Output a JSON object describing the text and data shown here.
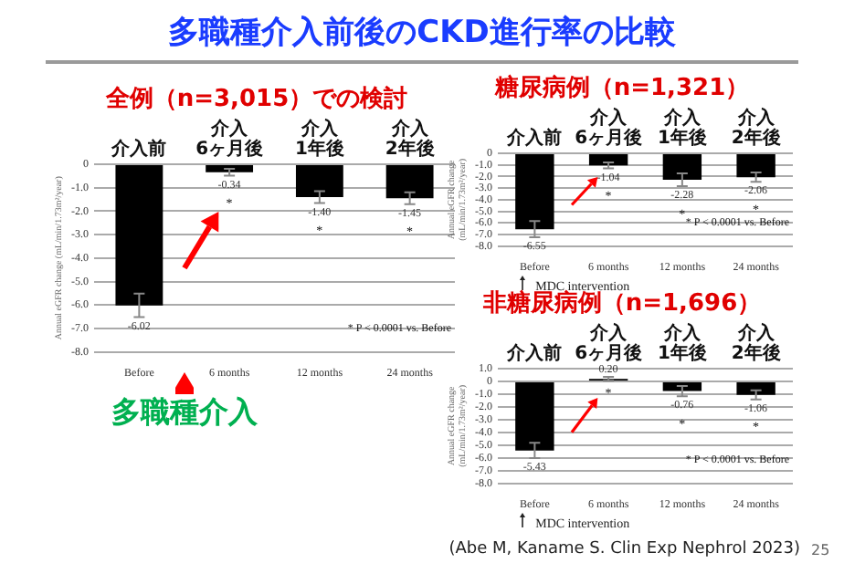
{
  "chart_data": [
    {
      "type": "bar",
      "title": "多職種介入前後のCKD進行率の比較",
      "subtitle": "全例（n=3,015）での検討",
      "ylabel": "Annual eGFR change (mL/min/1.73m²/year)",
      "categories": [
        "Before",
        "6 months",
        "12 months",
        "24 months"
      ],
      "values": [
        -6.02,
        -0.34,
        -1.4,
        -1.45
      ],
      "color": "#000000",
      "errors": [
        0.5,
        0.15,
        0.25,
        0.25
      ],
      "value_labels": [
        "-6.02",
        "-0.34",
        "-1.40",
        "-1.45"
      ],
      "ylim": [
        -8,
        0
      ],
      "yticks": [
        {
          "value": -8,
          "label": "-8.0"
        },
        {
          "value": -7,
          "label": "-7.0"
        },
        {
          "value": -6,
          "label": "-6.0"
        },
        {
          "value": -5,
          "label": "-5.0"
        },
        {
          "value": -4,
          "label": "-4.0"
        },
        {
          "value": -3,
          "label": "-3.0"
        },
        {
          "value": -2,
          "label": "-2.0"
        },
        {
          "value": -1,
          "label": "-1.0"
        },
        {
          "value": 0,
          "label": "0"
        }
      ],
      "grid": "y",
      "annotations": [
        "介入前",
        "介入\n6ヶ月後",
        "介入\n1年後",
        "介入\n2年後",
        "*",
        "*",
        "*",
        "* P < 0.0001 vs. Before",
        "多職種介入"
      ]
    },
    {
      "type": "bar",
      "title": "糖尿病例（n=1,321）",
      "ylabel": "Annual eGFR change (mL/min/1.73m²/year)",
      "categories": [
        "Before",
        "6 months",
        "12 months",
        "24 months"
      ],
      "values": [
        -6.55,
        -1.04,
        -2.28,
        -2.06
      ],
      "color": "#000000",
      "errors": [
        0.7,
        0.25,
        0.55,
        0.4
      ],
      "value_labels": [
        "-6.55",
        "-1.04",
        "-2.28",
        "-2.06"
      ],
      "ylim": [
        -8,
        0
      ],
      "yticks": [
        {
          "value": -8,
          "label": "-8.0"
        },
        {
          "value": -7,
          "label": "-7.0"
        },
        {
          "value": -6,
          "label": "-6.0"
        },
        {
          "value": -5,
          "label": "-5.0"
        },
        {
          "value": -4,
          "label": "-4.0"
        },
        {
          "value": -3,
          "label": "-3.0"
        },
        {
          "value": -2,
          "label": "-2.0"
        },
        {
          "value": -1,
          "label": "-1.0"
        },
        {
          "value": 0,
          "label": "0"
        }
      ],
      "grid": "y",
      "annotations": [
        "介入前",
        "介入\n6ヶ月後",
        "介入\n1年後",
        "介入\n2年後",
        "*",
        "*",
        "*",
        "* P < 0.0001 vs. Before",
        "MDC intervention"
      ]
    },
    {
      "type": "bar",
      "title": "非糖尿病例（n=1,696）",
      "ylabel": "Annual eGFR change (mL/min/1.73m²/year)",
      "categories": [
        "Before",
        "6 months",
        "12 months",
        "24 months"
      ],
      "values": [
        -5.43,
        0.2,
        -0.76,
        -1.06
      ],
      "color": "#000000",
      "errors": [
        0.6,
        0.15,
        0.4,
        0.35
      ],
      "value_labels": [
        "-5.43",
        "0.20",
        "-0.76",
        "-1.06"
      ],
      "ylim": [
        -8,
        1
      ],
      "yticks": [
        {
          "value": -8,
          "label": "-8.0"
        },
        {
          "value": -7,
          "label": "-7.0"
        },
        {
          "value": -6,
          "label": "-6.0"
        },
        {
          "value": -5,
          "label": "-5.0"
        },
        {
          "value": -4,
          "label": "-4.0"
        },
        {
          "value": -3,
          "label": "-3.0"
        },
        {
          "value": -2,
          "label": "-2.0"
        },
        {
          "value": -1,
          "label": "-1.0"
        },
        {
          "value": 0,
          "label": "0"
        },
        {
          "value": 1,
          "label": "1.0"
        }
      ],
      "grid": "y",
      "annotations": [
        "介入前",
        "介入\n6ヶ月後",
        "介入\n1年後",
        "介入\n2年後",
        "*",
        "*",
        "*",
        "* P < 0.0001 vs. Before",
        "MDC intervention",
        "(Abe M, Kaname S. Clin Exp Nephrol 2023)",
        "25"
      ]
    }
  ]
}
